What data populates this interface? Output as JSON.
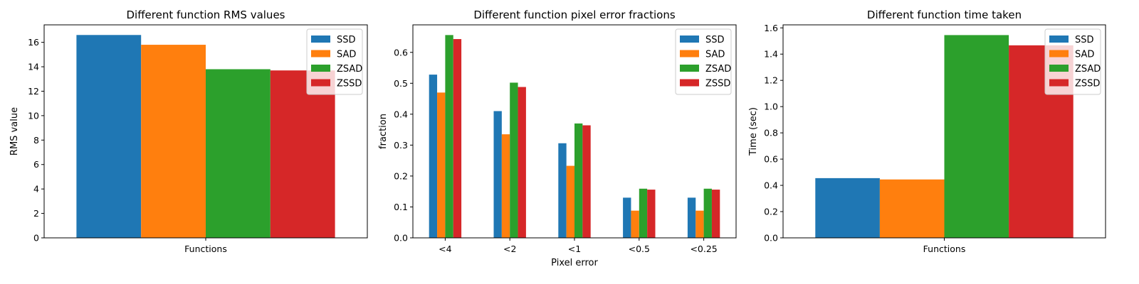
{
  "colors": {
    "SSD": "#1f77b4",
    "SAD": "#ff7f0e",
    "ZSAD": "#2ca02c",
    "ZSSD": "#d62728"
  },
  "chart_data": [
    {
      "type": "bar",
      "title": "Different function RMS values",
      "xlabel": "",
      "ylabel": "RMS value",
      "categories": [
        "Functions"
      ],
      "series": [
        {
          "name": "SSD",
          "values": [
            16.6
          ]
        },
        {
          "name": "SAD",
          "values": [
            15.8
          ]
        },
        {
          "name": "ZSAD",
          "values": [
            13.8
          ]
        },
        {
          "name": "ZSSD",
          "values": [
            13.7
          ]
        }
      ],
      "ylim": [
        0,
        17.43
      ],
      "yticks": [
        "0",
        "2",
        "4",
        "6",
        "8",
        "10",
        "12",
        "14",
        "16"
      ],
      "legend": "top-right",
      "grid": false
    },
    {
      "type": "bar",
      "title": "Different function pixel error fractions",
      "xlabel": "Pixel error",
      "ylabel": "fraction",
      "categories": [
        "<4",
        "<2",
        "<1",
        "<0.5",
        "<0.25"
      ],
      "series": [
        {
          "name": "SSD",
          "values": [
            0.528,
            0.41,
            0.306,
            0.13,
            0.13
          ]
        },
        {
          "name": "SAD",
          "values": [
            0.47,
            0.335,
            0.233,
            0.088,
            0.088
          ]
        },
        {
          "name": "ZSAD",
          "values": [
            0.656,
            0.502,
            0.37,
            0.159,
            0.159
          ]
        },
        {
          "name": "ZSSD",
          "values": [
            0.643,
            0.488,
            0.364,
            0.156,
            0.156
          ]
        }
      ],
      "ylim": [
        0,
        0.689
      ],
      "yticks": [
        "0.0",
        "0.1",
        "0.2",
        "0.3",
        "0.4",
        "0.5",
        "0.6"
      ],
      "legend": "top-right",
      "grid": false
    },
    {
      "type": "bar",
      "title": "Different function time taken",
      "xlabel": "",
      "ylabel": "Time (sec)",
      "categories": [
        "Functions"
      ],
      "series": [
        {
          "name": "SSD",
          "values": [
            0.455
          ]
        },
        {
          "name": "SAD",
          "values": [
            0.445
          ]
        },
        {
          "name": "ZSAD",
          "values": [
            1.545
          ]
        },
        {
          "name": "ZSSD",
          "values": [
            1.467
          ]
        }
      ],
      "ylim": [
        0,
        1.623
      ],
      "yticks": [
        "0.0",
        "0.2",
        "0.4",
        "0.6",
        "0.8",
        "1.0",
        "1.2",
        "1.4",
        "1.6"
      ],
      "legend": "top-right",
      "grid": false
    }
  ]
}
